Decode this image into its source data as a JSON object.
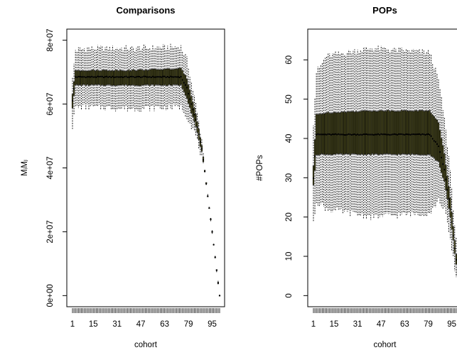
{
  "chart_data": [
    {
      "type": "boxplot",
      "title": "Comparisons",
      "xlabel": "cohort",
      "ylabel": "MᵢMⱼ",
      "x_range": [
        1,
        100
      ],
      "ylim": [
        0,
        80000000
      ],
      "y_ticks": [
        {
          "value": 0,
          "label": "0e+00"
        },
        {
          "value": 20000000,
          "label": "2e+07"
        },
        {
          "value": 40000000,
          "label": "4e+07"
        },
        {
          "value": 60000000,
          "label": "6e+07"
        },
        {
          "value": 80000000,
          "label": "8e+07"
        }
      ],
      "x_ticks": [
        {
          "value": 1,
          "label": "1"
        },
        {
          "value": 15,
          "label": "15"
        },
        {
          "value": 31,
          "label": "31"
        },
        {
          "value": 47,
          "label": "47"
        },
        {
          "value": 63,
          "label": "63"
        },
        {
          "value": 79,
          "label": "79"
        },
        {
          "value": 95,
          "label": "95"
        }
      ],
      "box_fill": "#4a4a1a",
      "median_profile": [
        {
          "x": 1,
          "median": 61000000,
          "q1": 59000000,
          "q3": 63000000,
          "whisker_low": 53000000,
          "whisker_high": 68000000
        },
        {
          "x": 3,
          "median": 68500000,
          "q1": 66000000,
          "q3": 70500000,
          "whisker_low": 59000000,
          "whisker_high": 77000000
        },
        {
          "x": 10,
          "median": 68500000,
          "q1": 66000000,
          "q3": 70500000,
          "whisker_low": 59000000,
          "whisker_high": 77500000
        },
        {
          "x": 40,
          "median": 68500000,
          "q1": 66000000,
          "q3": 70500000,
          "whisker_low": 58500000,
          "whisker_high": 77500000
        },
        {
          "x": 74,
          "median": 68500000,
          "q1": 66000000,
          "q3": 71000000,
          "whisker_low": 59000000,
          "whisker_high": 78000000
        },
        {
          "x": 78,
          "median": 65000000,
          "q1": 62000000,
          "q3": 68000000,
          "whisker_low": 56000000,
          "whisker_high": 74000000
        },
        {
          "x": 84,
          "median": 55000000,
          "q1": 53000000,
          "q3": 57000000,
          "whisker_low": 50000000,
          "whisker_high": 60000000
        },
        {
          "x": 88,
          "median": 46000000,
          "q1": 45000000,
          "q3": 47000000,
          "whisker_low": 43000000,
          "whisker_high": 49000000
        },
        {
          "x": 90,
          "median": 39000000,
          "q1": 38500000,
          "q3": 39500000,
          "whisker_low": 38000000,
          "whisker_high": 40000000
        },
        {
          "x": 92,
          "median": 31000000,
          "q1": 31000000,
          "q3": 31000000,
          "whisker_low": 31000000,
          "whisker_high": 31000000
        },
        {
          "x": 94,
          "median": 24000000,
          "q1": 24000000,
          "q3": 24000000,
          "whisker_low": 24000000,
          "whisker_high": 24000000
        },
        {
          "x": 96,
          "median": 16000000,
          "q1": 16000000,
          "q3": 16000000,
          "whisker_low": 16000000,
          "whisker_high": 16000000
        },
        {
          "x": 98,
          "median": 8000000,
          "q1": 8000000,
          "q3": 8000000,
          "whisker_low": 8000000,
          "whisker_high": 8000000
        },
        {
          "x": 100,
          "median": 0,
          "q1": 0,
          "q3": 0,
          "whisker_low": 0,
          "whisker_high": 0
        }
      ]
    },
    {
      "type": "boxplot",
      "title": "POPs",
      "xlabel": "cohort",
      "ylabel": "#POPs",
      "x_range": [
        1,
        100
      ],
      "ylim": [
        0,
        65
      ],
      "y_ticks": [
        {
          "value": 0,
          "label": "0"
        },
        {
          "value": 10,
          "label": "10"
        },
        {
          "value": 20,
          "label": "20"
        },
        {
          "value": 30,
          "label": "30"
        },
        {
          "value": 40,
          "label": "40"
        },
        {
          "value": 50,
          "label": "50"
        },
        {
          "value": 60,
          "label": "60"
        }
      ],
      "x_ticks": [
        {
          "value": 1,
          "label": "1"
        },
        {
          "value": 15,
          "label": "15"
        },
        {
          "value": 31,
          "label": "31"
        },
        {
          "value": 47,
          "label": "47"
        },
        {
          "value": 63,
          "label": "63"
        },
        {
          "value": 79,
          "label": "79"
        },
        {
          "value": 95,
          "label": "95"
        }
      ],
      "box_fill": "#4a4a1a",
      "median_profile": [
        {
          "x": 1,
          "median": 30,
          "q1": 28,
          "q3": 33,
          "whisker_low": 18,
          "whisker_high": 44
        },
        {
          "x": 3,
          "median": 41,
          "q1": 36,
          "q3": 46,
          "whisker_low": 24,
          "whisker_high": 57
        },
        {
          "x": 10,
          "median": 41,
          "q1": 36,
          "q3": 46.5,
          "whisker_low": 22,
          "whisker_high": 61
        },
        {
          "x": 40,
          "median": 41,
          "q1": 36,
          "q3": 47,
          "whisker_low": 20,
          "whisker_high": 63
        },
        {
          "x": 80,
          "median": 41,
          "q1": 36,
          "q3": 47,
          "whisker_low": 21,
          "whisker_high": 62
        },
        {
          "x": 86,
          "median": 38,
          "q1": 34,
          "q3": 44,
          "whisker_low": 24,
          "whisker_high": 55
        },
        {
          "x": 90,
          "median": 32,
          "q1": 29,
          "q3": 36,
          "whisker_low": 22,
          "whisker_high": 45
        },
        {
          "x": 94,
          "median": 22,
          "q1": 20,
          "q3": 25,
          "whisker_low": 14,
          "whisker_high": 32
        },
        {
          "x": 97,
          "median": 12,
          "q1": 11,
          "q3": 14,
          "whisker_low": 7,
          "whisker_high": 18
        },
        {
          "x": 100,
          "median": 3,
          "q1": 2,
          "q3": 4,
          "whisker_low": 0,
          "whisker_high": 6
        }
      ]
    }
  ]
}
